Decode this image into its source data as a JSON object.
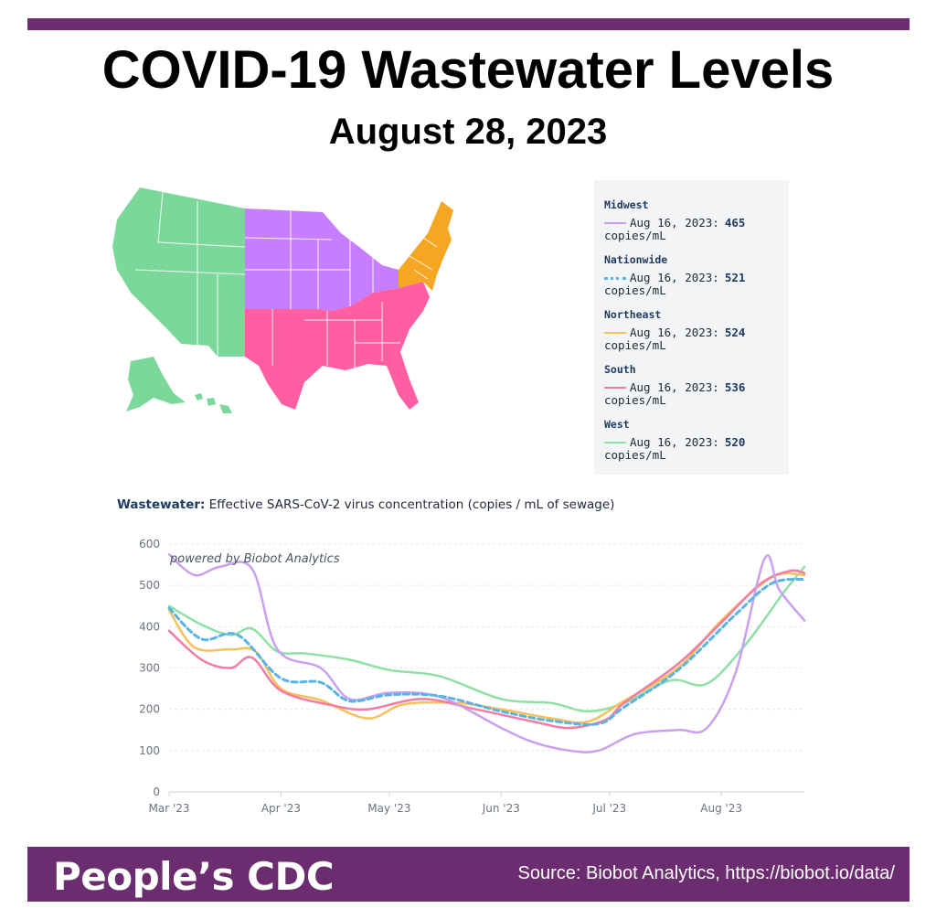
{
  "header": {
    "title": "COVID-19 Wastewater Levels",
    "date": "August 28, 2023"
  },
  "map": {
    "regions": [
      {
        "name": "West",
        "color": "#7bd89a"
      },
      {
        "name": "Midwest",
        "color": "#c77dff"
      },
      {
        "name": "Northeast",
        "color": "#f5a623"
      },
      {
        "name": "South",
        "color": "#ff5fa2"
      }
    ]
  },
  "legend": {
    "items": [
      {
        "name": "Midwest",
        "date": "Aug 16, 2023:",
        "value": "465",
        "unit": "copies/mL",
        "color": "#c9a0f0",
        "style": "solid"
      },
      {
        "name": "Nationwide",
        "date": "Aug 16, 2023:",
        "value": "521",
        "unit": "copies/mL",
        "color": "#5bb3e3",
        "style": "dotted"
      },
      {
        "name": "Northeast",
        "date": "Aug 16, 2023:",
        "value": "524",
        "unit": "copies/mL",
        "color": "#f6c15a",
        "style": "solid"
      },
      {
        "name": "South",
        "date": "Aug 16, 2023:",
        "value": "536",
        "unit": "copies/mL",
        "color": "#f57ca0",
        "style": "solid"
      },
      {
        "name": "West",
        "date": "Aug 16, 2023:",
        "value": "520",
        "unit": "copies/mL",
        "color": "#8ee0a6",
        "style": "solid"
      }
    ]
  },
  "chart_data": {
    "type": "line",
    "heading_bold": "Wastewater:",
    "heading_text": "Effective SARS-CoV-2 virus concentration (copies / mL of sewage)",
    "watermark": "powered by Biobot Analytics",
    "ylim": [
      0,
      600
    ],
    "yticks": [
      0,
      100,
      200,
      300,
      400,
      500,
      600
    ],
    "xticks": [
      "Mar '23",
      "Apr '23",
      "May '23",
      "Jun '23",
      "Jul '23",
      "Aug '23"
    ],
    "x_range": [
      "2023-03-01",
      "2023-08-24"
    ],
    "grid": true,
    "series": [
      {
        "name": "West",
        "color": "#8ee0a6",
        "dashed": false,
        "points": [
          [
            "2023-03-01",
            450
          ],
          [
            "2023-03-10",
            405
          ],
          [
            "2023-03-18",
            380
          ],
          [
            "2023-03-24",
            395
          ],
          [
            "2023-03-31",
            340
          ],
          [
            "2023-04-08",
            335
          ],
          [
            "2023-04-20",
            320
          ],
          [
            "2023-05-01",
            295
          ],
          [
            "2023-05-15",
            280
          ],
          [
            "2023-06-01",
            225
          ],
          [
            "2023-06-15",
            215
          ],
          [
            "2023-06-25",
            195
          ],
          [
            "2023-07-05",
            215
          ],
          [
            "2023-07-18",
            270
          ],
          [
            "2023-07-28",
            262
          ],
          [
            "2023-08-08",
            360
          ],
          [
            "2023-08-18",
            480
          ],
          [
            "2023-08-24",
            545
          ]
        ]
      },
      {
        "name": "Northeast",
        "color": "#f6c15a",
        "dashed": false,
        "points": [
          [
            "2023-03-01",
            440
          ],
          [
            "2023-03-08",
            350
          ],
          [
            "2023-03-18",
            345
          ],
          [
            "2023-03-25",
            340
          ],
          [
            "2023-04-01",
            250
          ],
          [
            "2023-04-12",
            222
          ],
          [
            "2023-04-25",
            178
          ],
          [
            "2023-05-05",
            212
          ],
          [
            "2023-05-20",
            215
          ],
          [
            "2023-06-01",
            200
          ],
          [
            "2023-06-15",
            178
          ],
          [
            "2023-06-25",
            170
          ],
          [
            "2023-07-05",
            220
          ],
          [
            "2023-07-20",
            300
          ],
          [
            "2023-08-01",
            415
          ],
          [
            "2023-08-15",
            520
          ],
          [
            "2023-08-24",
            525
          ]
        ]
      },
      {
        "name": "South",
        "color": "#f57ca0",
        "dashed": false,
        "points": [
          [
            "2023-03-01",
            390
          ],
          [
            "2023-03-10",
            320
          ],
          [
            "2023-03-18",
            300
          ],
          [
            "2023-03-24",
            325
          ],
          [
            "2023-04-01",
            245
          ],
          [
            "2023-04-15",
            210
          ],
          [
            "2023-04-25",
            200
          ],
          [
            "2023-05-10",
            225
          ],
          [
            "2023-05-25",
            200
          ],
          [
            "2023-06-10",
            170
          ],
          [
            "2023-06-20",
            155
          ],
          [
            "2023-06-30",
            175
          ],
          [
            "2023-07-05",
            215
          ],
          [
            "2023-07-20",
            310
          ],
          [
            "2023-08-01",
            410
          ],
          [
            "2023-08-12",
            505
          ],
          [
            "2023-08-20",
            535
          ],
          [
            "2023-08-24",
            530
          ]
        ]
      },
      {
        "name": "Midwest",
        "color": "#c9a0f0",
        "dashed": false,
        "points": [
          [
            "2023-03-01",
            575
          ],
          [
            "2023-03-08",
            525
          ],
          [
            "2023-03-15",
            545
          ],
          [
            "2023-03-24",
            540
          ],
          [
            "2023-03-31",
            345
          ],
          [
            "2023-04-12",
            300
          ],
          [
            "2023-04-20",
            225
          ],
          [
            "2023-05-01",
            240
          ],
          [
            "2023-05-15",
            230
          ],
          [
            "2023-06-01",
            155
          ],
          [
            "2023-06-10",
            120
          ],
          [
            "2023-06-20",
            100
          ],
          [
            "2023-06-28",
            100
          ],
          [
            "2023-07-08",
            140
          ],
          [
            "2023-07-20",
            150
          ],
          [
            "2023-07-28",
            155
          ],
          [
            "2023-08-05",
            290
          ],
          [
            "2023-08-13",
            565
          ],
          [
            "2023-08-17",
            490
          ],
          [
            "2023-08-24",
            415
          ]
        ]
      },
      {
        "name": "Nationwide",
        "color": "#5bb3e3",
        "dashed": true,
        "points": [
          [
            "2023-03-01",
            445
          ],
          [
            "2023-03-10",
            370
          ],
          [
            "2023-03-20",
            380
          ],
          [
            "2023-04-01",
            275
          ],
          [
            "2023-04-12",
            265
          ],
          [
            "2023-04-20",
            220
          ],
          [
            "2023-05-01",
            235
          ],
          [
            "2023-05-15",
            232
          ],
          [
            "2023-06-01",
            195
          ],
          [
            "2023-06-15",
            172
          ],
          [
            "2023-06-28",
            165
          ],
          [
            "2023-07-05",
            205
          ],
          [
            "2023-07-20",
            295
          ],
          [
            "2023-08-05",
            430
          ],
          [
            "2023-08-15",
            505
          ],
          [
            "2023-08-24",
            515
          ]
        ]
      }
    ]
  },
  "footer": {
    "brand": "People’s CDC",
    "source": "Source: Biobot Analytics, https://biobot.io/data/"
  }
}
